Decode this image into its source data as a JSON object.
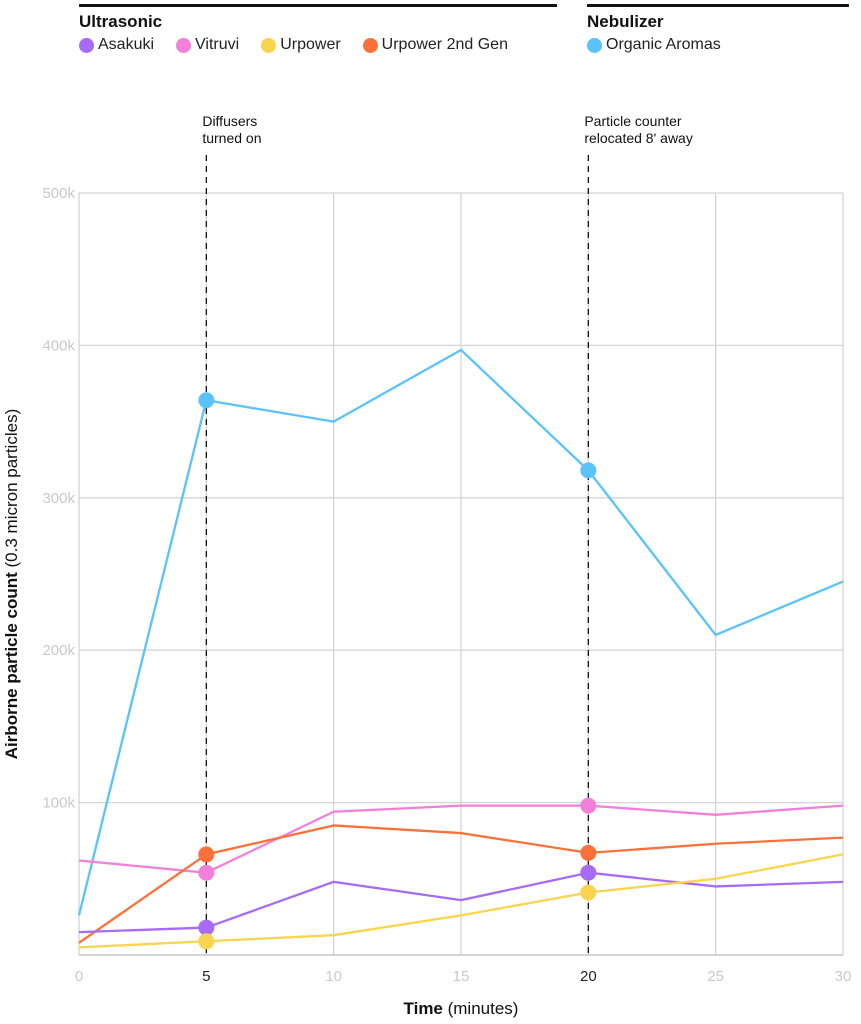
{
  "legend": {
    "groups": [
      {
        "title": "Ultrasonic",
        "items": [
          {
            "label": "Asakuki",
            "color": "#a66bf7"
          },
          {
            "label": "Vitruvi",
            "color": "#f27fd8"
          },
          {
            "label": "Urpower",
            "color": "#f9d44e"
          },
          {
            "label": "Urpower 2nd Gen",
            "color": "#fb7139"
          }
        ]
      },
      {
        "title": "Nebulizer",
        "items": [
          {
            "label": "Organic Aromas",
            "color": "#5ac3fb"
          }
        ]
      }
    ]
  },
  "chart_data": {
    "type": "line",
    "x": [
      0,
      5,
      10,
      15,
      20,
      25,
      30
    ],
    "xlim": [
      0,
      30
    ],
    "ylim": [
      0,
      500000
    ],
    "xticks": [
      "0",
      "5",
      "10",
      "15",
      "20",
      "25",
      "30"
    ],
    "yticks": [
      {
        "value": 100000,
        "label": "100k"
      },
      {
        "value": 200000,
        "label": "200k"
      },
      {
        "value": 300000,
        "label": "300k"
      },
      {
        "value": 400000,
        "label": "400k"
      },
      {
        "value": 500000,
        "label": "500k"
      }
    ],
    "xlabel_bold": "Time",
    "xlabel_rest": " (minutes)",
    "ylabel_bold": "Airborne particle count",
    "ylabel_rest": " (0.3 micron particles)",
    "grid": true,
    "marker_x": [
      5,
      20
    ],
    "annotations": [
      {
        "x": 5,
        "lines": [
          "Diffusers",
          "turned on"
        ]
      },
      {
        "x": 20,
        "lines": [
          "Particle counter",
          "relocated 8' away"
        ]
      }
    ],
    "series": [
      {
        "name": "Organic Aromas",
        "color": "#5ac3fb",
        "values": [
          26000,
          364000,
          350000,
          397000,
          318000,
          210000,
          245000
        ]
      },
      {
        "name": "Vitruvi",
        "color": "#f27fd8",
        "values": [
          62000,
          54000,
          94000,
          98000,
          98000,
          92000,
          98000
        ]
      },
      {
        "name": "Urpower 2nd Gen",
        "color": "#fb7139",
        "values": [
          8000,
          66000,
          85000,
          80000,
          67000,
          73000,
          77000
        ]
      },
      {
        "name": "Asakuki",
        "color": "#a66bf7",
        "values": [
          15000,
          18000,
          48000,
          36000,
          54000,
          45000,
          48000
        ]
      },
      {
        "name": "Urpower",
        "color": "#f9d44e",
        "values": [
          5000,
          9000,
          13000,
          26000,
          41000,
          50000,
          66000
        ]
      }
    ]
  }
}
